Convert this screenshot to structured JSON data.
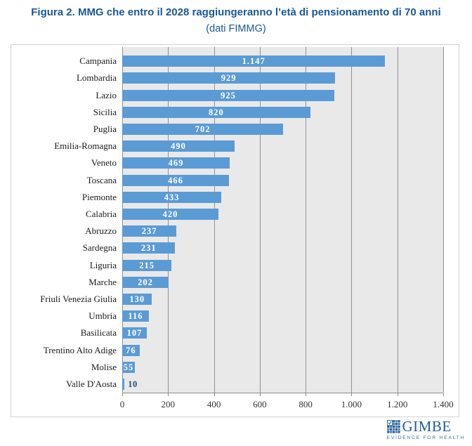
{
  "title": "Figura 2. MMG che entro il 2028 raggiungeranno l’età di pensionamento di 70 anni",
  "subtitle": "(dati FIMMG)",
  "chart_data": {
    "type": "bar",
    "orientation": "horizontal",
    "title": "Figura 2. MMG che entro il 2028 raggiungeranno l’età di pensionamento di 70 anni",
    "subtitle": "(dati FIMMG)",
    "categories": [
      "Campania",
      "Lombardia",
      "Lazio",
      "Sicilia",
      "Puglia",
      "Emilia-Romagna",
      "Veneto",
      "Toscana",
      "Piemonte",
      "Calabria",
      "Abruzzo",
      "Sardegna",
      "Liguria",
      "Marche",
      "Friuli Venezia Giulia",
      "Umbria",
      "Basilicata",
      "Trentino Alto Adige",
      "Molise",
      "Valle D'Aosta"
    ],
    "values": [
      1147,
      929,
      925,
      820,
      702,
      490,
      469,
      466,
      433,
      420,
      237,
      231,
      215,
      202,
      130,
      116,
      107,
      76,
      55,
      10
    ],
    "value_labels": [
      "1.147",
      "929",
      "925",
      "820",
      "702",
      "490",
      "469",
      "466",
      "433",
      "420",
      "237",
      "231",
      "215",
      "202",
      "130",
      "116",
      "107",
      "76",
      "55",
      "10"
    ],
    "xlim": [
      0,
      1400
    ],
    "x_ticks": [
      0,
      200,
      400,
      600,
      800,
      1000,
      1200,
      1400
    ],
    "x_tick_labels": [
      "0",
      "200",
      "400",
      "600",
      "800",
      "1.000",
      "1.200",
      "1.400"
    ],
    "grid": "vertical",
    "legend": "none",
    "xlabel": "",
    "ylabel": ""
  },
  "colors": {
    "title": "#1A5796",
    "bar": "#5B9BD5",
    "plot_bg": "#E9E9E9",
    "gridline": "#909090",
    "value_label_inside": "#FFFFFF",
    "value_label_outside": "#1F4E79",
    "logo_blue": "#1F5C99"
  },
  "logo": {
    "name": "GIMBE",
    "tagline": "EVIDENCE FOR HEALTH",
    "icon": "checkered-grid-check-icon"
  }
}
